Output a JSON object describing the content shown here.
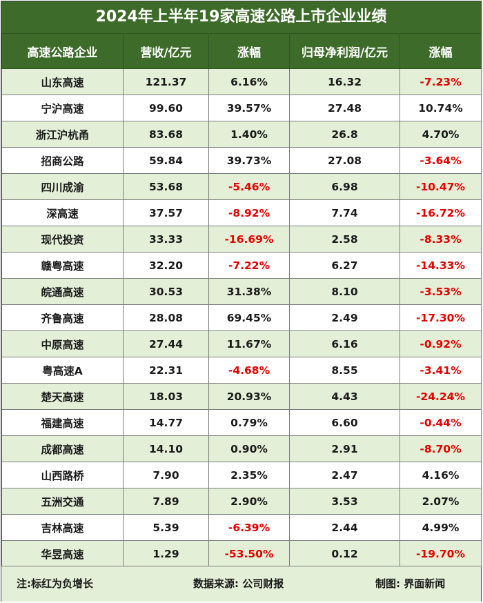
{
  "title": "2024年上半年19家高速公路上市企业业绩",
  "headers": [
    "高速公路企业",
    "营收/亿元",
    "涨幅",
    "归母净利润/亿元",
    "涨幅"
  ],
  "colors": {
    "header_bg": "#3d6b2a",
    "stripe": "#e4efd8",
    "negative": "#e60000"
  },
  "rows": [
    {
      "company": "山东高速",
      "revenue": "121.37",
      "revenue_growth": "6.16%",
      "net_profit": "16.32",
      "profit_growth": "-7.23%"
    },
    {
      "company": "宁沪高速",
      "revenue": "99.60",
      "revenue_growth": "39.57%",
      "net_profit": "27.48",
      "profit_growth": "10.74%"
    },
    {
      "company": "浙江沪杭甬",
      "revenue": "83.68",
      "revenue_growth": "1.40%",
      "net_profit": "26.8",
      "profit_growth": "4.70%"
    },
    {
      "company": "招商公路",
      "revenue": "59.84",
      "revenue_growth": "39.73%",
      "net_profit": "27.08",
      "profit_growth": "-3.64%"
    },
    {
      "company": "四川成渝",
      "revenue": "53.68",
      "revenue_growth": "-5.46%",
      "net_profit": "6.98",
      "profit_growth": "-10.47%"
    },
    {
      "company": "深高速",
      "revenue": "37.57",
      "revenue_growth": "-8.92%",
      "net_profit": "7.74",
      "profit_growth": "-16.72%"
    },
    {
      "company": "现代投资",
      "revenue": "33.33",
      "revenue_growth": "-16.69%",
      "net_profit": "2.58",
      "profit_growth": "-8.33%"
    },
    {
      "company": "赣粤高速",
      "revenue": "32.20",
      "revenue_growth": "-7.22%",
      "net_profit": "6.27",
      "profit_growth": "-14.33%"
    },
    {
      "company": "皖通高速",
      "revenue": "30.53",
      "revenue_growth": "31.38%",
      "net_profit": "8.10",
      "profit_growth": "-3.53%"
    },
    {
      "company": "齐鲁高速",
      "revenue": "28.08",
      "revenue_growth": "69.45%",
      "net_profit": "2.49",
      "profit_growth": "-17.30%"
    },
    {
      "company": "中原高速",
      "revenue": "27.44",
      "revenue_growth": "11.67%",
      "net_profit": "6.16",
      "profit_growth": "-0.92%"
    },
    {
      "company": "粤高速A",
      "revenue": "22.31",
      "revenue_growth": "-4.68%",
      "net_profit": "8.55",
      "profit_growth": "-3.41%"
    },
    {
      "company": "楚天高速",
      "revenue": "18.03",
      "revenue_growth": "20.93%",
      "net_profit": "4.43",
      "profit_growth": "-24.24%"
    },
    {
      "company": "福建高速",
      "revenue": "14.77",
      "revenue_growth": "0.79%",
      "net_profit": "6.60",
      "profit_growth": "-0.44%"
    },
    {
      "company": "成都高速",
      "revenue": "14.10",
      "revenue_growth": "0.90%",
      "net_profit": "2.91",
      "profit_growth": "-8.70%"
    },
    {
      "company": "山西路桥",
      "revenue": "7.90",
      "revenue_growth": "2.35%",
      "net_profit": "2.47",
      "profit_growth": "4.16%"
    },
    {
      "company": "五洲交通",
      "revenue": "7.89",
      "revenue_growth": "2.90%",
      "net_profit": "3.53",
      "profit_growth": "2.07%"
    },
    {
      "company": "吉林高速",
      "revenue": "5.39",
      "revenue_growth": "-6.39%",
      "net_profit": "2.44",
      "profit_growth": "4.99%"
    },
    {
      "company": "华昱高速",
      "revenue": "1.29",
      "revenue_growth": "-53.50%",
      "net_profit": "0.12",
      "profit_growth": "-19.70%"
    }
  ],
  "footer": {
    "note": "注:标红为负增长",
    "source": "数据来源: 公司财报",
    "credit": "制图: 界面新闻"
  }
}
